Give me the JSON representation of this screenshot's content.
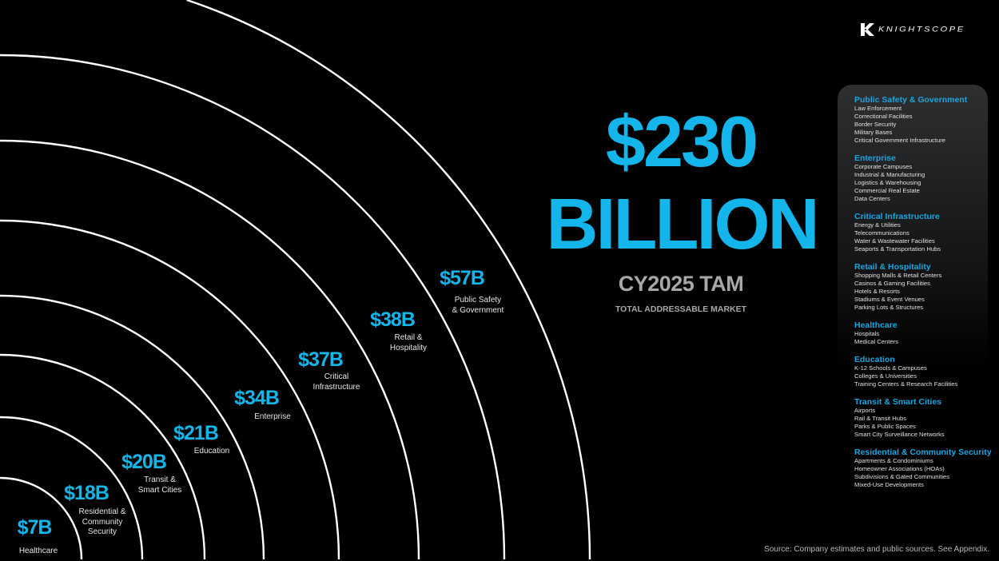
{
  "brand": {
    "logo_text": "KNIGHTSCOPE"
  },
  "headline": {
    "amount": "$230",
    "unit": "BILLION",
    "subtitle": "CY2025 TAM",
    "caption": "TOTAL ADDRESSABLE MARKET"
  },
  "colors": {
    "accent": "#13b5ea",
    "background": "#000000",
    "arc": "#ffffff",
    "muted": "#a8a8a8"
  },
  "segments": [
    {
      "value": "$7B",
      "label": [
        "Healthcare"
      ]
    },
    {
      "value": "$18B",
      "label": [
        "Residential &",
        "Community",
        "Security"
      ]
    },
    {
      "value": "$20B",
      "label": [
        "Transit &",
        "Smart Cities"
      ]
    },
    {
      "value": "$21B",
      "label": [
        "Education"
      ]
    },
    {
      "value": "$34B",
      "label": [
        "Enterprise"
      ]
    },
    {
      "value": "$37B",
      "label": [
        "Critical",
        "Infrastructure"
      ]
    },
    {
      "value": "$38B",
      "label": [
        "Retail &",
        "Hospitality"
      ]
    },
    {
      "value": "$57B",
      "label": [
        "Public Safety",
        "& Government"
      ]
    }
  ],
  "legend": [
    {
      "title": "Public Safety & Government",
      "items": [
        "Law Enforcement",
        "Correctional Facilities",
        "Border Security",
        "Military Bases",
        "Critical Government Infrastructure"
      ]
    },
    {
      "title": "Enterprise",
      "items": [
        "Corporate Campuses",
        "Industrial & Manufacturing",
        "Logistics & Warehousing",
        "Commercial Real Estate",
        "Data Centers"
      ]
    },
    {
      "title": "Critical Infrastructure",
      "items": [
        "Energy & Utilities",
        "Telecommunications",
        "Water & Wastewater Facilities",
        "Seaports & Transportation Hubs"
      ]
    },
    {
      "title": "Retail & Hospitality",
      "items": [
        "Shopping Malls & Retail Centers",
        "Casinos & Gaming Facilities",
        "Hotels & Resorts",
        "Stadiums & Event Venues",
        "Parking Lots & Structures"
      ]
    },
    {
      "title": "Healthcare",
      "items": [
        "Hospitals",
        "Medical Centers"
      ]
    },
    {
      "title": "Education",
      "items": [
        "K-12 Schools & Campuses",
        "Colleges & Universities",
        "Training Centers & Research Facilities"
      ]
    },
    {
      "title": "Transit & Smart Cities",
      "items": [
        "Airports",
        "Rail & Transit Hubs",
        "Parks & Public Spaces",
        "Smart City Surveillance Networks"
      ]
    },
    {
      "title": "Residential & Community Security",
      "items": [
        "Apartments & Condominiums",
        "Homeowner Associations (HOAs)",
        "Subdivisions & Gated Communities",
        "Mixed-Use Developments"
      ]
    }
  ],
  "source": "Source: Company estimates and public sources. See Appendix."
}
